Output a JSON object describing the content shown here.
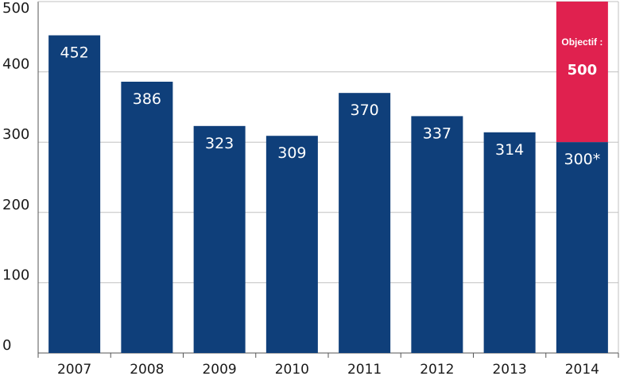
{
  "chart_data": {
    "type": "bar",
    "categories": [
      "2007",
      "2008",
      "2009",
      "2010",
      "2011",
      "2012",
      "2013",
      "2014"
    ],
    "values": [
      452,
      386,
      323,
      309,
      370,
      337,
      314,
      300
    ],
    "data_labels": [
      "452",
      "386",
      "323",
      "309",
      "370",
      "337",
      "314",
      "300*"
    ],
    "ylim": [
      0,
      500
    ],
    "yticks": [
      0,
      100,
      200,
      300,
      400,
      500
    ],
    "grid": true,
    "target": {
      "category": "2014",
      "value": 500,
      "note": "Objectif :",
      "label": "500"
    },
    "colors": {
      "bar": "#0f3f7a",
      "target": "#e0214f",
      "grid": "#c0c0c0",
      "axis": "#555555"
    }
  }
}
